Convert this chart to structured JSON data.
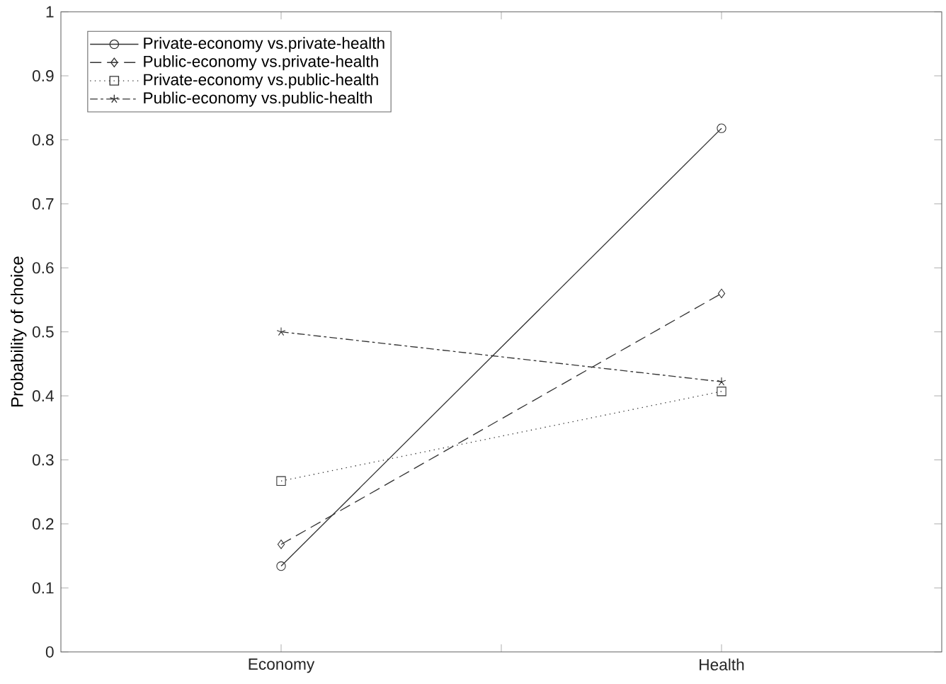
{
  "chart_data": {
    "type": "line",
    "ylabel": "Probability of choice",
    "categories": [
      "Economy",
      "Health"
    ],
    "ylim": [
      0,
      1
    ],
    "yticks": [
      0,
      0.1,
      0.2,
      0.3,
      0.4,
      0.5,
      0.6,
      0.7,
      0.8,
      0.9,
      1
    ],
    "grid": false,
    "legend": "top left",
    "series": [
      {
        "name": "Private-economy vs.private-health",
        "color": "#333333",
        "values": [
          0.134,
          0.818
        ],
        "marker": "circle",
        "line_style": "solid"
      },
      {
        "name": "Public-economy vs.private-health",
        "color": "#333333",
        "values": [
          0.168,
          0.56
        ],
        "marker": "diamond",
        "line_style": "dashed"
      },
      {
        "name": "Private-economy vs.public-health",
        "color": "#333333",
        "values": [
          0.267,
          0.407
        ],
        "marker": "square",
        "line_style": "dotted"
      },
      {
        "name": "Public-economy vs.public-health",
        "color": "#333333",
        "values": [
          0.5,
          0.422
        ],
        "marker": "cross",
        "line_style": "dashdot"
      }
    ]
  }
}
